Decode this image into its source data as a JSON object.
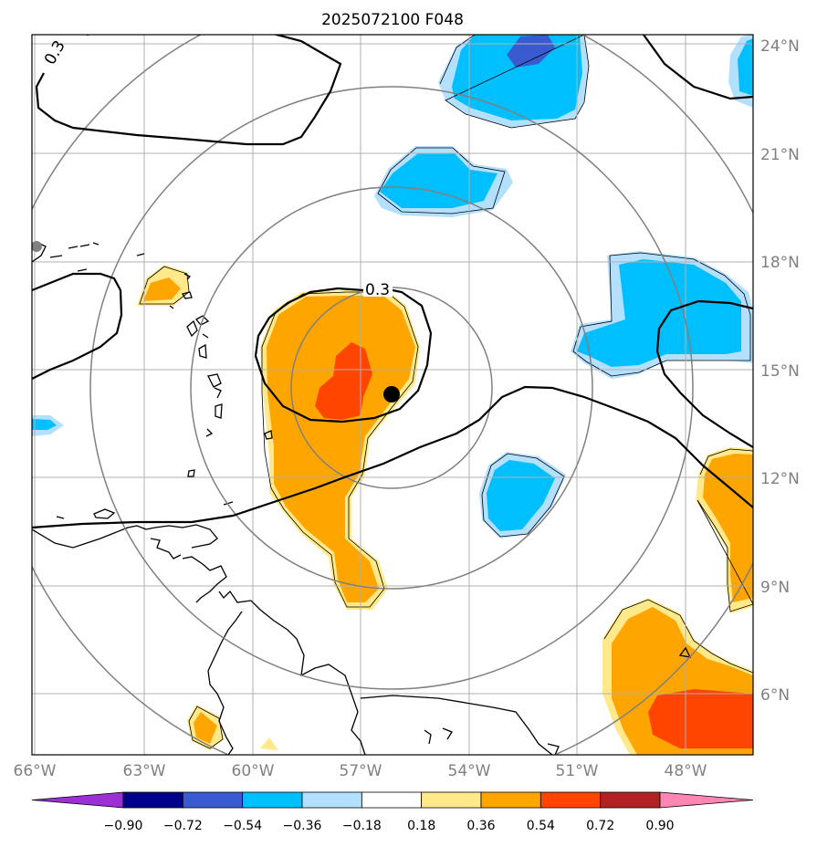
{
  "title": "2025072100 F048",
  "map": {
    "lon_range": [
      -66,
      -46.5
    ],
    "lat_range": [
      4.5,
      24.5
    ],
    "lon_ticks": [
      -66,
      -63,
      -60,
      -57,
      -54,
      -51,
      -48
    ],
    "lat_ticks": [
      6,
      9,
      12,
      15,
      18,
      21,
      24
    ],
    "lon_labels": [
      "66°W",
      "63°W",
      "60°W",
      "57°W",
      "54°W",
      "51°W",
      "48°W"
    ],
    "lat_labels": [
      "6°N",
      "9°N",
      "12°N",
      "15°N",
      "18°N",
      "21°N",
      "24°N"
    ],
    "storm_center": {
      "lon": -56.1,
      "lat": 14.4
    },
    "range_rings_center": {
      "lon": -56.5,
      "lat": 14.5
    },
    "contour_label": "0.3",
    "grid": true
  },
  "colorbar": {
    "levels": [
      "−0.90",
      "−0.72",
      "−0.54",
      "−0.36",
      "−0.18",
      "0.18",
      "0.36",
      "0.54",
      "0.72",
      "0.90"
    ],
    "colors": [
      "#9b30d6",
      "#00008b",
      "#3a5bd0",
      "#00bfff",
      "#b3e0ff",
      "#ffffff",
      "#ffe98a",
      "#ffa500",
      "#ff4500",
      "#b22222",
      "#ff85b5"
    ],
    "extend": "both"
  },
  "colors": {
    "grid": "#b0b0b0",
    "ring": "#808080",
    "land_marker": "#808080"
  }
}
